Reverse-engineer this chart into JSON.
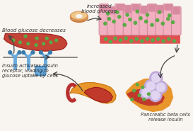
{
  "background_color": "#f8f4ef",
  "text_labels": {
    "increased_blood_glucose": "Increased\nblood glucose",
    "blood_glucose_decreases": "Blood glucose decreases",
    "insulin_activates": "Insulin activates insulin\nreceptor, leading to\nglucose uptake by cells",
    "pancreatic_beta_cells": "Pancreatic beta cells\nrelease insulin"
  },
  "colors": {
    "blood_red": "#c0392b",
    "blood_red2": "#d44",
    "blood_vessel_red": "#e05050",
    "cell_pink": "#f2afc0",
    "cell_pink_dark": "#d88aa0",
    "cell_pink_outline": "#c07888",
    "glucose_green": "#5aaa45",
    "receptor_blue": "#6aaadd",
    "receptor_blue_dark": "#3a7aaa",
    "pancreas_orange": "#e8952a",
    "pancreas_dark_red": "#b83030",
    "pancreas_maroon": "#8b2020",
    "beta_cell_purple": "#c0aad8",
    "beta_cell_inner": "#e0d4f0",
    "arrow_color": "#444444",
    "donut_brown": "#c87a3a",
    "donut_top": "#d8955a",
    "donut_cream": "#f0c88a",
    "donut_hole_shadow": "#a85a20",
    "text_color": "#333333"
  },
  "figsize": [
    2.73,
    1.85
  ],
  "dpi": 100
}
